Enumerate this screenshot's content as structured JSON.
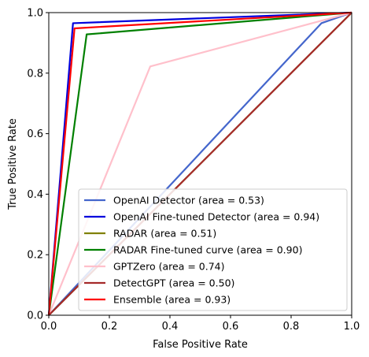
{
  "chart_data": {
    "type": "line",
    "title": "",
    "xlabel": "False Positive Rate",
    "ylabel": "True Positive Rate",
    "xlim": [
      0,
      1
    ],
    "ylim": [
      0,
      1
    ],
    "xticks": [
      "0.0",
      "0.2",
      "0.4",
      "0.6",
      "0.8",
      "1.0"
    ],
    "yticks": [
      "0.0",
      "0.2",
      "0.4",
      "0.6",
      "0.8",
      "1.0"
    ],
    "grid": false,
    "legend_position": "bottom-right",
    "series": [
      {
        "name": "OpenAI Detector (area = 0.53)",
        "color": "#4466cc",
        "x": [
          0,
          0.9,
          1
        ],
        "y": [
          0,
          0.965,
          1
        ]
      },
      {
        "name": "OpenAI Fine-tuned Detector (area = 0.94)",
        "color": "#0000dd",
        "x": [
          0,
          0.08,
          1
        ],
        "y": [
          0,
          0.965,
          1
        ]
      },
      {
        "name": "RADAR (area = 0.51)",
        "color": "#808000",
        "x": [
          0,
          1
        ],
        "y": [
          0,
          1
        ]
      },
      {
        "name": "RADAR Fine-tuned curve (area = 0.90)",
        "color": "#008000",
        "x": [
          0,
          0.125,
          1
        ],
        "y": [
          0,
          0.928,
          1
        ]
      },
      {
        "name": "GPTZero (area = 0.74)",
        "color": "#ffc0cb",
        "x": [
          0,
          0.335,
          1
        ],
        "y": [
          0,
          0.822,
          1
        ]
      },
      {
        "name": "DetectGPT (area = 0.50)",
        "color": "#a52a2a",
        "x": [
          0,
          1
        ],
        "y": [
          0,
          1
        ]
      },
      {
        "name": "Ensemble (area = 0.93)",
        "color": "#ff0000",
        "x": [
          0,
          0.085,
          1
        ],
        "y": [
          0,
          0.948,
          1
        ]
      }
    ]
  }
}
